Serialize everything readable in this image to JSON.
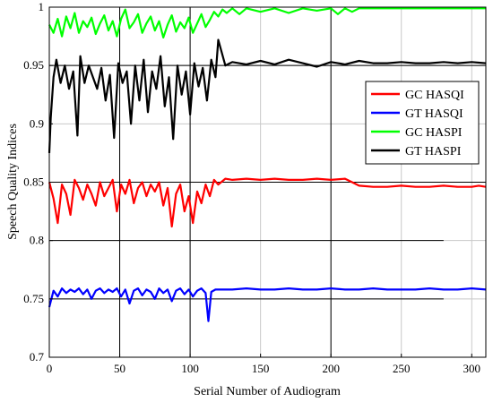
{
  "chart_data": {
    "type": "line",
    "xlabel": "Serial Number of Audiogram",
    "ylabel": "Speech Quality Indices",
    "xlim": [
      0,
      310
    ],
    "ylim": [
      0.7,
      1.0
    ],
    "xticks": [
      0,
      50,
      100,
      150,
      200,
      250,
      300
    ],
    "yticks": [
      0.7,
      0.75,
      0.8,
      0.85,
      0.9,
      0.95,
      1.0
    ],
    "ytick_labels": [
      "0.7",
      "0.75",
      "0.8",
      "0.85",
      "0.9",
      "0.95",
      "1"
    ],
    "grid": true,
    "legend_position": "right",
    "series": [
      {
        "name": "GC HASQI",
        "color": "#ff0000",
        "x": [
          0,
          3,
          6,
          9,
          12,
          15,
          18,
          21,
          24,
          27,
          30,
          33,
          36,
          39,
          42,
          45,
          48,
          51,
          54,
          57,
          60,
          63,
          66,
          69,
          72,
          75,
          78,
          81,
          84,
          87,
          90,
          93,
          96,
          99,
          102,
          105,
          108,
          111,
          114,
          117,
          120,
          125,
          130,
          140,
          150,
          160,
          170,
          180,
          190,
          200,
          210,
          215,
          220,
          230,
          240,
          250,
          260,
          270,
          280,
          290,
          300,
          305,
          310
        ],
        "values": [
          0.85,
          0.836,
          0.815,
          0.848,
          0.84,
          0.822,
          0.852,
          0.845,
          0.835,
          0.848,
          0.84,
          0.83,
          0.85,
          0.838,
          0.845,
          0.852,
          0.825,
          0.848,
          0.84,
          0.852,
          0.832,
          0.845,
          0.85,
          0.838,
          0.848,
          0.842,
          0.85,
          0.83,
          0.845,
          0.812,
          0.84,
          0.848,
          0.825,
          0.838,
          0.815,
          0.842,
          0.832,
          0.848,
          0.838,
          0.852,
          0.848,
          0.853,
          0.852,
          0.853,
          0.852,
          0.853,
          0.852,
          0.852,
          0.853,
          0.852,
          0.853,
          0.85,
          0.847,
          0.846,
          0.846,
          0.847,
          0.846,
          0.846,
          0.847,
          0.846,
          0.846,
          0.847,
          0.846
        ]
      },
      {
        "name": "GT HASQI",
        "color": "#0000ff",
        "x": [
          0,
          3,
          6,
          9,
          12,
          15,
          18,
          21,
          24,
          27,
          30,
          33,
          36,
          39,
          42,
          45,
          48,
          51,
          54,
          57,
          60,
          63,
          66,
          69,
          72,
          75,
          78,
          81,
          84,
          87,
          90,
          93,
          96,
          99,
          102,
          105,
          108,
          111,
          113,
          115,
          118,
          125,
          130,
          140,
          150,
          160,
          170,
          180,
          190,
          200,
          210,
          220,
          230,
          240,
          250,
          260,
          270,
          280,
          290,
          300,
          310
        ],
        "values": [
          0.743,
          0.757,
          0.752,
          0.759,
          0.755,
          0.758,
          0.756,
          0.759,
          0.754,
          0.758,
          0.75,
          0.757,
          0.759,
          0.755,
          0.758,
          0.756,
          0.759,
          0.752,
          0.758,
          0.746,
          0.757,
          0.759,
          0.753,
          0.758,
          0.756,
          0.75,
          0.759,
          0.755,
          0.758,
          0.748,
          0.757,
          0.759,
          0.754,
          0.758,
          0.752,
          0.757,
          0.759,
          0.755,
          0.731,
          0.756,
          0.758,
          0.758,
          0.758,
          0.759,
          0.758,
          0.758,
          0.759,
          0.758,
          0.758,
          0.759,
          0.758,
          0.758,
          0.759,
          0.758,
          0.758,
          0.758,
          0.759,
          0.758,
          0.758,
          0.759,
          0.758
        ]
      },
      {
        "name": "GC HASPI",
        "color": "#00ff00",
        "x": [
          0,
          3,
          6,
          9,
          12,
          15,
          18,
          21,
          24,
          27,
          30,
          33,
          36,
          39,
          42,
          45,
          48,
          51,
          54,
          57,
          60,
          63,
          66,
          69,
          72,
          75,
          78,
          81,
          84,
          87,
          90,
          93,
          96,
          99,
          102,
          105,
          108,
          111,
          114,
          117,
          120,
          123,
          126,
          130,
          135,
          140,
          150,
          160,
          170,
          180,
          190,
          200,
          205,
          210,
          215,
          220,
          230,
          250,
          270,
          290,
          310
        ],
        "values": [
          0.985,
          0.978,
          0.99,
          0.975,
          0.992,
          0.982,
          0.995,
          0.978,
          0.988,
          0.983,
          0.991,
          0.977,
          0.986,
          0.993,
          0.98,
          0.988,
          0.975,
          0.99,
          0.998,
          0.982,
          0.987,
          0.994,
          0.978,
          0.986,
          0.992,
          0.98,
          0.988,
          0.974,
          0.985,
          0.993,
          0.979,
          0.987,
          0.982,
          0.991,
          0.978,
          0.986,
          0.994,
          0.983,
          0.989,
          0.996,
          0.992,
          0.998,
          0.995,
          0.999,
          0.994,
          0.999,
          0.996,
          0.999,
          0.995,
          0.999,
          0.997,
          0.999,
          0.994,
          0.999,
          0.996,
          0.999,
          0.999,
          0.999,
          0.999,
          0.999,
          0.999
        ]
      },
      {
        "name": "GT HASPI",
        "color": "#000000",
        "x": [
          0,
          1,
          3,
          5,
          8,
          11,
          14,
          17,
          20,
          22,
          25,
          28,
          31,
          34,
          37,
          40,
          43,
          46,
          49,
          52,
          55,
          58,
          61,
          64,
          67,
          70,
          73,
          76,
          79,
          82,
          85,
          88,
          91,
          94,
          97,
          100,
          103,
          106,
          109,
          112,
          115,
          118,
          120,
          125,
          130,
          140,
          150,
          160,
          170,
          180,
          190,
          200,
          210,
          220,
          230,
          240,
          250,
          260,
          270,
          280,
          290,
          300,
          310
        ],
        "values": [
          0.875,
          0.905,
          0.94,
          0.955,
          0.935,
          0.95,
          0.93,
          0.945,
          0.89,
          0.958,
          0.935,
          0.95,
          0.94,
          0.93,
          0.948,
          0.92,
          0.942,
          0.888,
          0.952,
          0.935,
          0.945,
          0.9,
          0.95,
          0.92,
          0.955,
          0.91,
          0.945,
          0.93,
          0.958,
          0.915,
          0.94,
          0.887,
          0.95,
          0.925,
          0.945,
          0.908,
          0.952,
          0.932,
          0.948,
          0.92,
          0.955,
          0.94,
          0.972,
          0.95,
          0.953,
          0.951,
          0.954,
          0.951,
          0.955,
          0.952,
          0.949,
          0.953,
          0.951,
          0.954,
          0.952,
          0.952,
          0.953,
          0.952,
          0.952,
          0.953,
          0.952,
          0.953,
          0.952
        ]
      }
    ],
    "reference_lines": [
      {
        "y": 0.95,
        "x": [
          0,
          310
        ]
      },
      {
        "y": 0.85,
        "x": [
          0,
          310
        ]
      },
      {
        "y": 0.8,
        "x": [
          0,
          280
        ]
      },
      {
        "y": 0.75,
        "x": [
          0,
          280
        ]
      }
    ]
  }
}
